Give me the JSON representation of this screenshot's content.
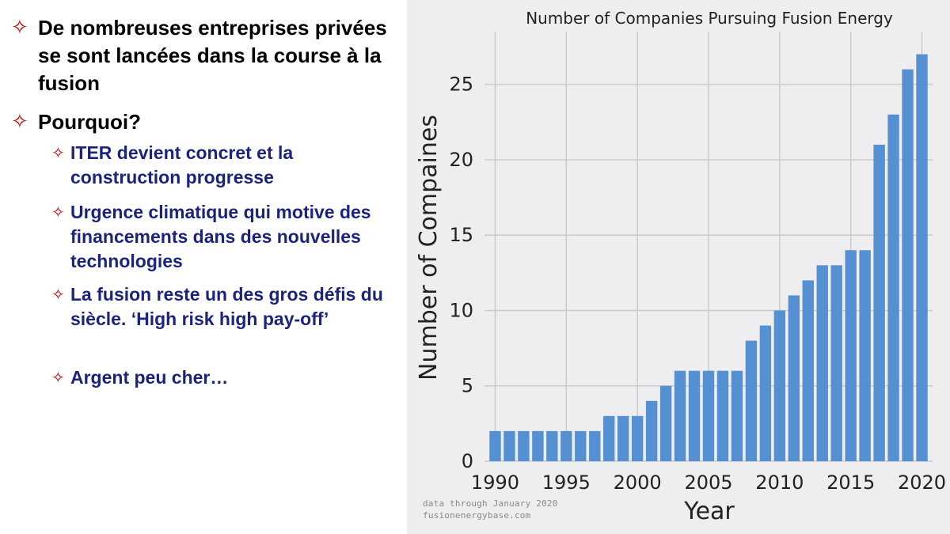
{
  "slide": {
    "bullets": [
      {
        "text": "De nombreuses entreprises privées se sont lancées dans la course à la fusion"
      },
      {
        "text": "Pourquoi?"
      }
    ],
    "sub_bullets": [
      {
        "text": "ITER devient concret et la construction progresse"
      },
      {
        "text": "Urgence climatique qui motive des financements dans des nouvelles technologies"
      },
      {
        "text": "La fusion reste un des gros défis du siècle. ‘High risk high pay-off’"
      },
      {
        "text": "Argent peu cher…"
      }
    ],
    "bullet_icon": "four-point-star-outline-icon",
    "colors": {
      "bullet_star": "#c00000",
      "main_text": "#000000",
      "sub_text": "#1a237e"
    }
  },
  "chart_data": {
    "type": "bar",
    "title": "Number of Companies Pursuing Fusion Energy",
    "xlabel": "Year",
    "ylabel": "Number of Compaines",
    "x": [
      1990,
      1991,
      1992,
      1993,
      1994,
      1995,
      1996,
      1997,
      1998,
      1999,
      2000,
      2001,
      2002,
      2003,
      2004,
      2005,
      2006,
      2007,
      2008,
      2009,
      2010,
      2011,
      2012,
      2013,
      2014,
      2015,
      2016,
      2017,
      2018,
      2019,
      2020
    ],
    "values": [
      2,
      2,
      2,
      2,
      2,
      2,
      2,
      2,
      3,
      3,
      3,
      4,
      5,
      6,
      6,
      6,
      6,
      6,
      8,
      9,
      10,
      11,
      12,
      13,
      13,
      14,
      14,
      21,
      23,
      26,
      27
    ],
    "xticks": [
      1990,
      1995,
      2000,
      2005,
      2010,
      2015,
      2020
    ],
    "yticks": [
      0,
      5,
      10,
      15,
      20,
      25
    ],
    "xlim": [
      1989.25,
      2020.75
    ],
    "ylim": [
      0,
      28.5
    ],
    "grid": true,
    "bar_color": "#5590d3",
    "background": "#eeeef0",
    "credit_lines": [
      "data through January 2020",
      "fusionenergybase.com"
    ]
  }
}
